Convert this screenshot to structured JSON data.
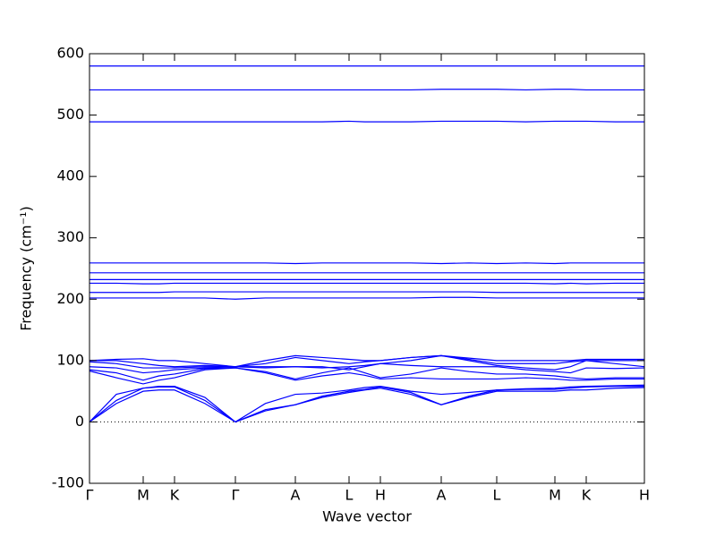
{
  "chart_data": {
    "type": "line",
    "xlabel": "Wave vector",
    "ylabel": "Frequency (cm⁻¹)",
    "x": [
      0,
      0.3,
      0.6,
      0.775,
      0.95,
      1.29,
      1.63,
      1.965,
      2.3,
      2.6,
      2.9,
      3.075,
      3.25,
      3.59,
      3.93,
      4.24,
      4.55,
      4.875,
      5.2,
      5.375,
      5.55,
      5.875,
      6.2
    ],
    "series": [
      {
        "color": "#0000ff",
        "values": [
          0,
          30,
          50,
          52,
          52,
          30,
          0,
          18,
          28,
          40,
          48,
          52,
          55,
          45,
          28,
          40,
          50,
          50,
          50,
          52,
          52,
          55,
          56
        ]
      },
      {
        "color": "#0000ff",
        "values": [
          0,
          35,
          55,
          57,
          57,
          35,
          0,
          20,
          28,
          42,
          50,
          53,
          57,
          48,
          28,
          42,
          52,
          53,
          53,
          55,
          57,
          58,
          58
        ]
      },
      {
        "color": "#0000ff",
        "values": [
          0,
          45,
          55,
          58,
          58,
          40,
          0,
          30,
          45,
          47,
          52,
          56,
          58,
          50,
          45,
          48,
          52,
          54,
          55,
          57,
          58,
          59,
          60
        ]
      },
      {
        "color": "#0000ff",
        "values": [
          83,
          72,
          62,
          68,
          72,
          85,
          88,
          80,
          68,
          75,
          80,
          76,
          70,
          72,
          70,
          70,
          70,
          72,
          70,
          68,
          68,
          70,
          70
        ]
      },
      {
        "color": "#0000ff",
        "values": [
          85,
          80,
          68,
          75,
          78,
          87,
          88,
          82,
          70,
          80,
          88,
          80,
          72,
          78,
          88,
          82,
          78,
          78,
          75,
          72,
          70,
          72,
          72
        ]
      },
      {
        "color": "#0000ff",
        "values": [
          90,
          88,
          80,
          82,
          85,
          88,
          90,
          88,
          90,
          90,
          85,
          90,
          95,
          92,
          90,
          90,
          90,
          85,
          82,
          80,
          88,
          87,
          88
        ]
      },
      {
        "color": "#0000ff",
        "values": [
          98,
          95,
          88,
          88,
          88,
          90,
          90,
          90,
          90,
          88,
          90,
          92,
          95,
          100,
          108,
          100,
          92,
          88,
          85,
          90,
          100,
          95,
          90
        ]
      },
      {
        "color": "#0000ff",
        "values": [
          100,
          100,
          95,
          92,
          90,
          92,
          90,
          95,
          105,
          100,
          95,
          98,
          100,
          105,
          108,
          102,
          95,
          95,
          95,
          98,
          100,
          100,
          100
        ]
      },
      {
        "color": "#0000ff",
        "values": [
          100,
          102,
          103,
          100,
          100,
          95,
          90,
          100,
          108,
          105,
          102,
          100,
          100,
          105,
          108,
          104,
          100,
          100,
          100,
          100,
          102,
          102,
          102
        ]
      },
      {
        "color": "#0000ff",
        "values": [
          202,
          202,
          202,
          202,
          202,
          202,
          200,
          202,
          202,
          202,
          202,
          202,
          202,
          202,
          203,
          203,
          202,
          202,
          202,
          202,
          202,
          202,
          202
        ]
      },
      {
        "color": "#0000ff",
        "values": [
          211,
          211,
          211,
          211,
          212,
          212,
          212,
          212,
          212,
          212,
          212,
          212,
          212,
          212,
          212,
          212,
          211,
          211,
          211,
          211,
          211,
          211,
          211
        ]
      },
      {
        "color": "#0000ff",
        "values": [
          226,
          226,
          225,
          225,
          226,
          226,
          226,
          226,
          226,
          226,
          226,
          226,
          226,
          226,
          226,
          226,
          226,
          226,
          225,
          226,
          225,
          226,
          226
        ]
      },
      {
        "color": "#0000ff",
        "values": [
          232,
          232,
          232,
          232,
          232,
          232,
          232,
          232,
          232,
          232,
          232,
          232,
          232,
          232,
          232,
          232,
          232,
          232,
          232,
          232,
          232,
          232,
          232
        ]
      },
      {
        "color": "#0000ff",
        "values": [
          243,
          243,
          243,
          243,
          243,
          243,
          243,
          243,
          243,
          243,
          243,
          243,
          243,
          243,
          243,
          243,
          243,
          243,
          243,
          243,
          243,
          243,
          243
        ]
      },
      {
        "color": "#0000ff",
        "values": [
          259,
          259,
          259,
          259,
          259,
          259,
          259,
          259,
          258,
          259,
          259,
          259,
          259,
          259,
          258,
          259,
          258,
          259,
          258,
          259,
          259,
          259,
          259
        ]
      },
      {
        "color": "#0000ff",
        "values": [
          489,
          489,
          489,
          489,
          489,
          489,
          489,
          489,
          489,
          489,
          490,
          489,
          489,
          489,
          490,
          490,
          490,
          489,
          490,
          490,
          490,
          489,
          489
        ]
      },
      {
        "color": "#0000ff",
        "values": [
          541,
          541,
          541,
          541,
          541,
          541,
          541,
          541,
          541,
          541,
          541,
          541,
          541,
          541,
          542,
          542,
          542,
          541,
          542,
          542,
          541,
          541,
          541
        ]
      },
      {
        "color": "#0000ff",
        "values": [
          580,
          580,
          580,
          580,
          580,
          580,
          580,
          580,
          580,
          580,
          580,
          580,
          580,
          580,
          580,
          580,
          580,
          580,
          580,
          580,
          580,
          580,
          580
        ]
      }
    ],
    "xlim": [
      0,
      6.2
    ],
    "xticks": [
      {
        "value": 0,
        "label": "Γ"
      },
      {
        "value": 0.6,
        "label": "M"
      },
      {
        "value": 0.95,
        "label": "K"
      },
      {
        "value": 1.63,
        "label": "Γ"
      },
      {
        "value": 2.3,
        "label": "A"
      },
      {
        "value": 2.9,
        "label": "L"
      },
      {
        "value": 3.25,
        "label": "H"
      },
      {
        "value": 3.93,
        "label": "A"
      },
      {
        "value": 4.55,
        "label": "L"
      },
      {
        "value": 5.2,
        "label": "M"
      },
      {
        "value": 5.55,
        "label": "K"
      },
      {
        "value": 6.2,
        "label": "H"
      }
    ],
    "ylim": [
      -100,
      600
    ],
    "yticks": [
      -100,
      0,
      100,
      200,
      300,
      400,
      500,
      600
    ],
    "hlines": [
      0
    ]
  }
}
